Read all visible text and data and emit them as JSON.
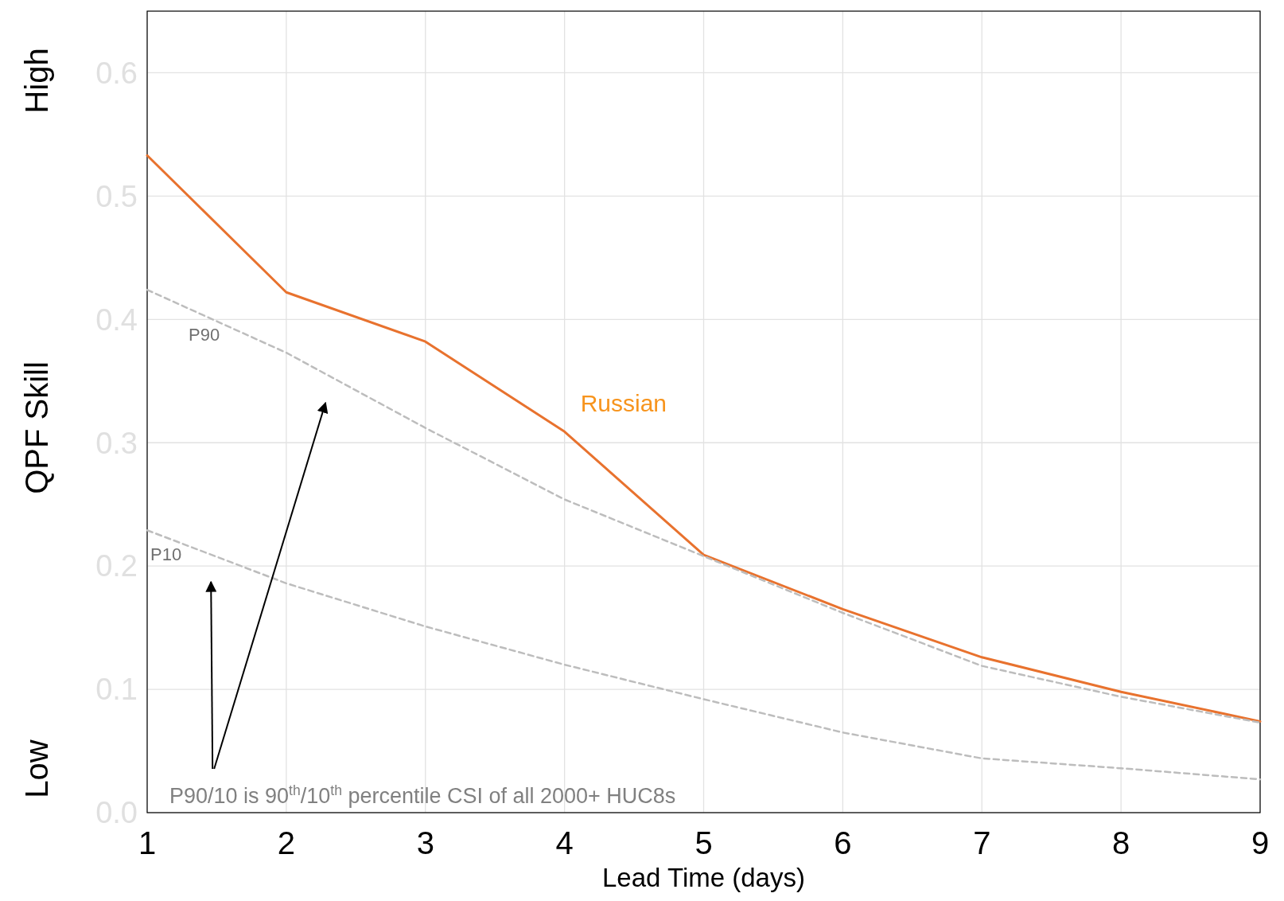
{
  "chart_data": {
    "type": "line",
    "xlabel": "Lead Time (days)",
    "ylabel": "QPF Skill",
    "x": [
      1,
      2,
      3,
      4,
      5,
      6,
      7,
      8,
      9
    ],
    "series": [
      {
        "name": "Russian",
        "color": "#e8722e",
        "line_style": "solid",
        "values": [
          0.533,
          0.422,
          0.382,
          0.309,
          0.209,
          0.165,
          0.126,
          0.098,
          0.074
        ]
      },
      {
        "name": "P90",
        "color": "#bdbdbd",
        "line_style": "dashed",
        "values": [
          0.424,
          0.373,
          0.312,
          0.254,
          0.208,
          0.162,
          0.119,
          0.094,
          0.073
        ]
      },
      {
        "name": "P10",
        "color": "#bdbdbd",
        "line_style": "dashed",
        "values": [
          0.229,
          0.186,
          0.151,
          0.12,
          0.092,
          0.065,
          0.044,
          0.036,
          0.027
        ]
      }
    ],
    "xlim": [
      1,
      9
    ],
    "xticks": [
      1,
      2,
      3,
      4,
      5,
      6,
      7,
      8,
      9
    ],
    "ylim": [
      0,
      0.65
    ],
    "yticks": [
      {
        "value": 0,
        "label": "0.0"
      },
      0.1,
      0.2,
      0.3,
      0.4,
      0.5,
      0.6
    ],
    "grid": true,
    "marker": "none",
    "annotations": [
      "High",
      "Low",
      "P90/10 is 90$^{th}$/10$^{th}$ percentile CSI of all 2000+ HUC8s"
    ]
  }
}
